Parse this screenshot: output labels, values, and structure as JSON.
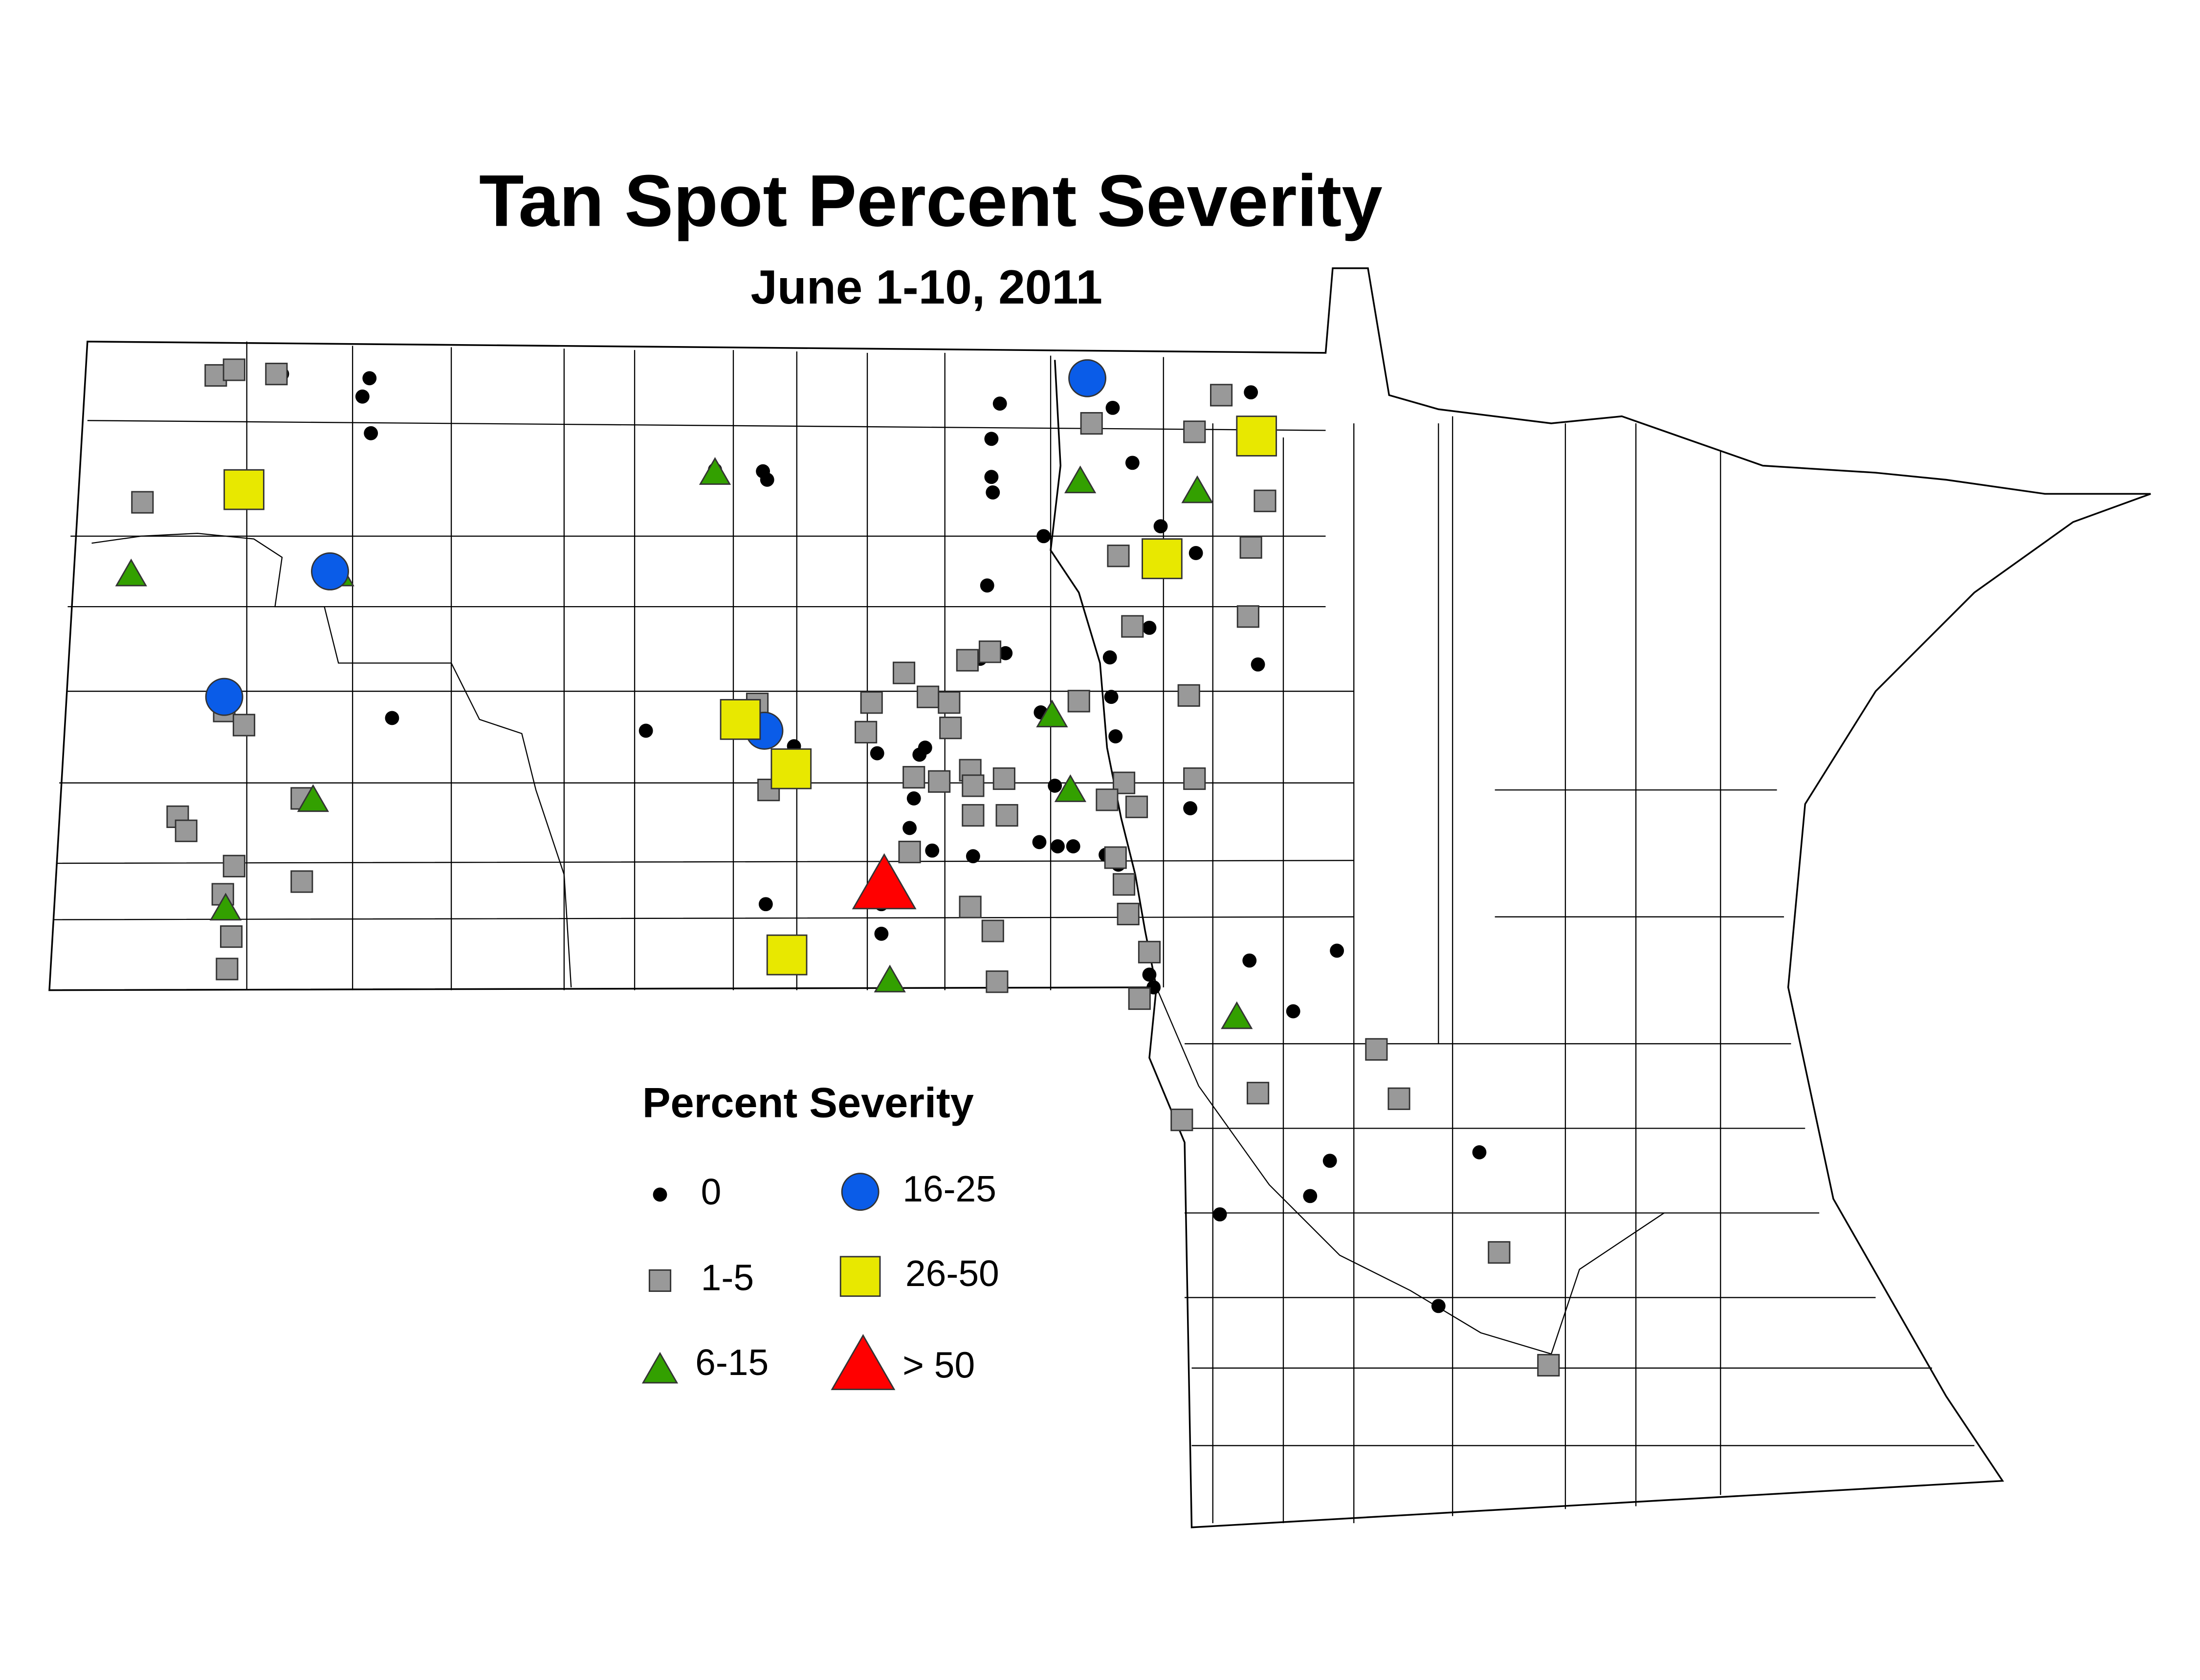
{
  "title": "Tan Spot Percent Severity",
  "subtitle": "June 1-10, 2011",
  "legend": {
    "title": "Percent Severity",
    "items": [
      {
        "label": "0",
        "color": "#000000"
      },
      {
        "label": "1-5",
        "color": "#999999"
      },
      {
        "label": "6-15",
        "color": "#33a000"
      },
      {
        "label": "16-25",
        "color": "#0a5ce8"
      },
      {
        "label": "26-50",
        "color": "#e8e800"
      },
      {
        "label": "> 50",
        "color": "#ff0000"
      }
    ]
  }
}
